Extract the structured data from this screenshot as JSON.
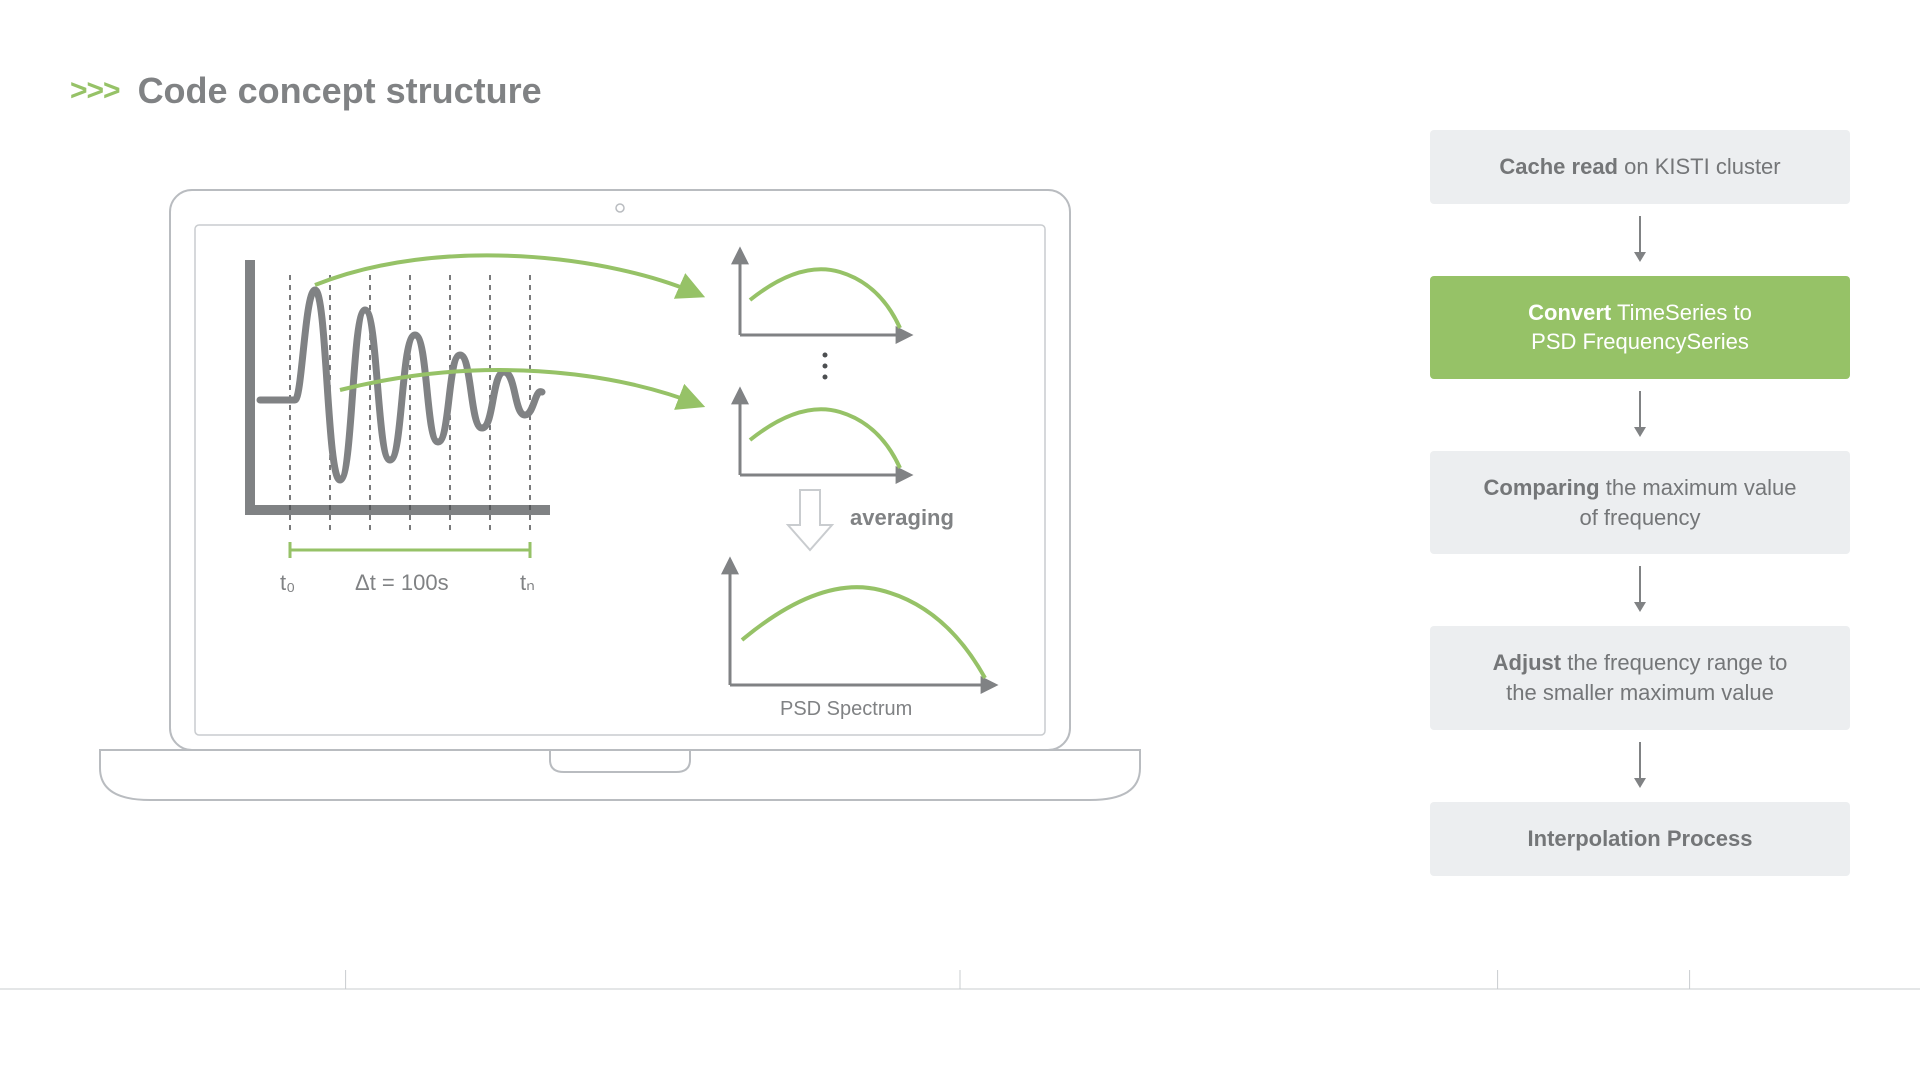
{
  "header": {
    "chevrons": ">>>",
    "title": "Code concept structure"
  },
  "colors": {
    "accent_green": "#96c267",
    "text_grey": "#808284",
    "box_grey_bg": "#eceef0",
    "box_grey_text": "#747678",
    "stroke_grey": "#808284",
    "stroke_light": "#c9cccf",
    "laptop_stroke": "#b9bcc0",
    "white": "#ffffff"
  },
  "flow": {
    "steps": [
      {
        "bold": "Cache read",
        "rest": " on KISTI cluster",
        "variant": "grey"
      },
      {
        "bold": "Convert",
        "rest": " TimeSeries to\nPSD FrequencySeries",
        "variant": "green"
      },
      {
        "bold": "Comparing",
        "rest": " the maximum value\nof frequency",
        "variant": "grey"
      },
      {
        "bold": "Adjust",
        "rest": " the frequency range to\nthe smaller maximum value",
        "variant": "grey"
      },
      {
        "bold": "Interpolation Process",
        "rest": "",
        "variant": "grey"
      }
    ],
    "arrow": {
      "length": 40,
      "stroke": "#808284",
      "stroke_width": 2
    }
  },
  "laptop": {
    "screen_bg": "#ffffff",
    "screen_stroke": "#b9bcc0",
    "diagram": {
      "axis_stroke": "#808284",
      "axis_width": 8,
      "wave_stroke": "#808284",
      "wave_width": 7,
      "dash_stroke": "#4d4f51",
      "dash_width": 1.5,
      "bracket_stroke": "#96c267",
      "bracket_width": 3,
      "labels": {
        "t0": "t₀",
        "dt": "Δt = 100s",
        "tn": "tₙ",
        "font_size": 22,
        "color": "#808284"
      },
      "link_arrow_stroke": "#96c267",
      "link_arrow_width": 4,
      "mini_axis_stroke": "#808284",
      "mini_axis_width": 3,
      "mini_curve_stroke": "#96c267",
      "mini_curve_width": 4,
      "averaging_label": "averaging",
      "averaging_font_size": 22,
      "psd_label": "PSD Spectrum",
      "psd_font_size": 20,
      "down_arrow_fill": "#ffffff",
      "down_arrow_stroke": "#c9cccf"
    }
  },
  "bottom_rule": {
    "stroke": "#c9cccf",
    "stroke_width": 1,
    "tick_positions_pct": [
      18,
      50,
      78,
      88
    ]
  }
}
